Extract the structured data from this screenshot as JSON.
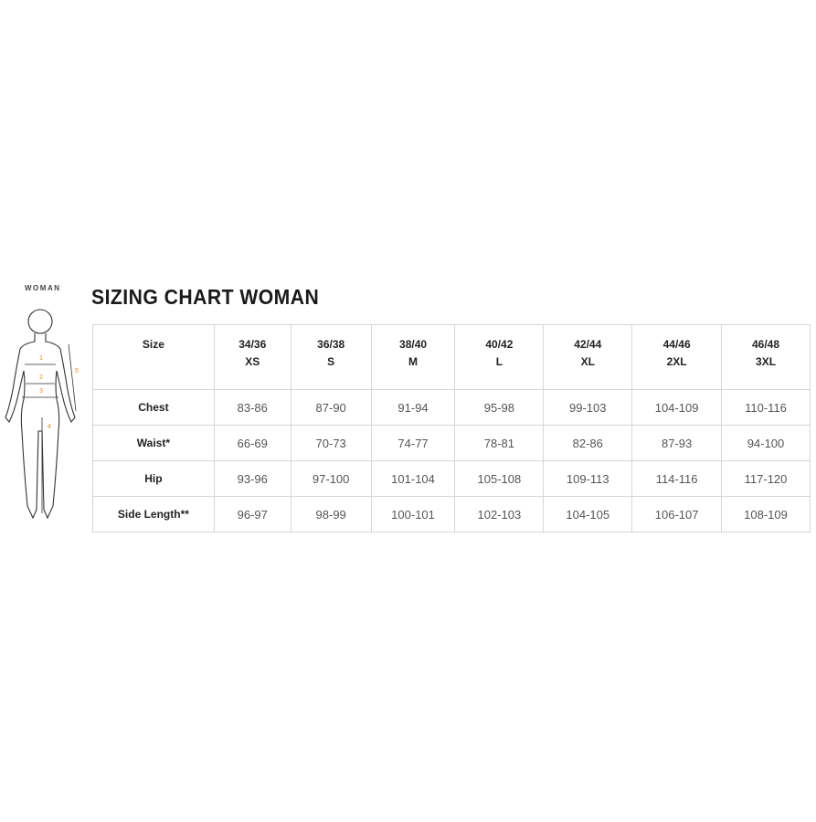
{
  "figure": {
    "label": "WOMAN",
    "markers": [
      "1",
      "2",
      "3",
      "4",
      "5"
    ],
    "marker_color": "#e08a2a"
  },
  "title": "SIZING CHART WOMAN",
  "table": {
    "header_label": "Size",
    "columns": [
      {
        "size": "34/36",
        "letter": "XS"
      },
      {
        "size": "36/38",
        "letter": "S"
      },
      {
        "size": "38/40",
        "letter": "M"
      },
      {
        "size": "40/42",
        "letter": "L"
      },
      {
        "size": "42/44",
        "letter": "XL"
      },
      {
        "size": "44/46",
        "letter": "2XL"
      },
      {
        "size": "46/48",
        "letter": "3XL"
      }
    ],
    "rows": [
      {
        "label": "Chest",
        "values": [
          "83-86",
          "87-90",
          "91-94",
          "95-98",
          "99-103",
          "104-109",
          "110-116"
        ]
      },
      {
        "label": "Waist*",
        "values": [
          "66-69",
          "70-73",
          "74-77",
          "78-81",
          "82-86",
          "87-93",
          "94-100"
        ]
      },
      {
        "label": "Hip",
        "values": [
          "93-96",
          "97-100",
          "101-104",
          "105-108",
          "109-113",
          "114-116",
          "117-120"
        ]
      },
      {
        "label": "Side Length**",
        "values": [
          "96-97",
          "98-99",
          "100-101",
          "102-103",
          "104-105",
          "106-107",
          "108-109"
        ]
      }
    ]
  }
}
